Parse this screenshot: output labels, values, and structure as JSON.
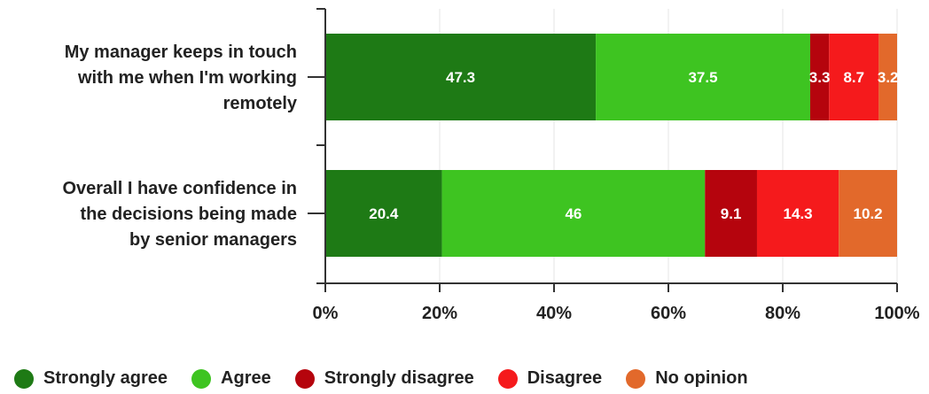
{
  "chart_data": {
    "type": "bar",
    "orientation": "horizontal",
    "stacked": true,
    "categories": [
      [
        "My manager keeps in touch",
        "with me when I'm working",
        "remotely"
      ],
      [
        "Overall I have confidence in",
        "the decisions being made",
        "by senior managers"
      ]
    ],
    "series": [
      {
        "name": "Strongly agree",
        "color": "#1e7a15",
        "values": [
          47.3,
          20.4
        ]
      },
      {
        "name": "Agree",
        "color": "#3ec421",
        "values": [
          37.5,
          46
        ]
      },
      {
        "name": "Strongly disagree",
        "color": "#b5040d",
        "values": [
          3.3,
          9.1
        ]
      },
      {
        "name": "Disagree",
        "color": "#f51a1c",
        "values": [
          8.7,
          14.3
        ]
      },
      {
        "name": "No opinion",
        "color": "#e2692b",
        "values": [
          3.2,
          10.2
        ]
      }
    ],
    "data_labels": [
      [
        "47.3",
        "37.5",
        "3.3",
        "8.7",
        "3.2"
      ],
      [
        "20.4",
        "46",
        "9.1",
        "14.3",
        "10.2"
      ]
    ],
    "x_ticks": [
      0,
      20,
      40,
      60,
      80,
      100
    ],
    "x_tick_labels": [
      "0%",
      "20%",
      "40%",
      "60%",
      "80%",
      "100%"
    ],
    "xlim": [
      0,
      100
    ],
    "grid": true,
    "legend_position": "bottom",
    "title": "",
    "xlabel": "",
    "ylabel": ""
  }
}
